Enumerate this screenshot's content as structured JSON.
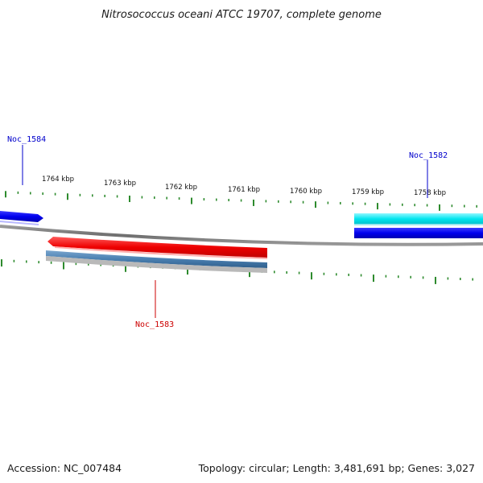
{
  "title": "Nitrosococcus oceani ATCC 19707, complete genome",
  "footer": {
    "accession": "Accession: NC_007484",
    "summary": "Topology: circular; Length: 3,481,691 bp; Genes: 3,027"
  },
  "ruler": {
    "labels": [
      "1764 kbp",
      "1763 kbp",
      "1762 kbp",
      "1761 kbp",
      "1760 kbp",
      "1759 kbp",
      "1758 kbp"
    ],
    "tick_color": "#2e8b2e"
  },
  "backbone_color": "#7a7a7a",
  "genes": [
    {
      "name": "Noc_1584",
      "color": "#0000ee",
      "strand": "forward"
    },
    {
      "name": "Noc_1583",
      "color": "#ee0000",
      "strand": "reverse"
    },
    {
      "name": "Noc_1582",
      "color": "#0000cc",
      "strand": "forward"
    }
  ],
  "feature_colors": {
    "cds_forward": "#0000ee",
    "cds_reverse": "#ee0000",
    "orf_reverse": "#4a7fb0",
    "orf_reverse_shadow": "#b8b8b8",
    "cyan_feature": "#00e5ee"
  }
}
